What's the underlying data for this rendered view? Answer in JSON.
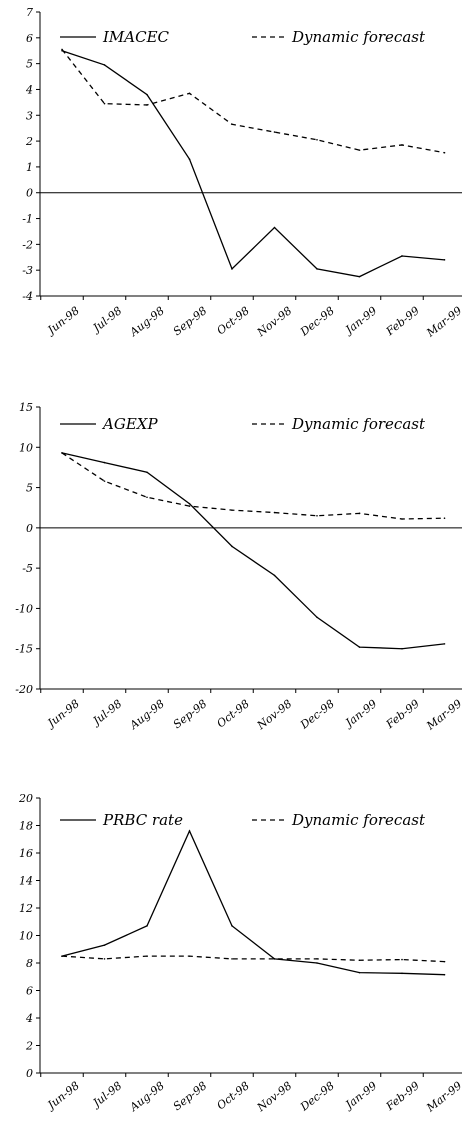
{
  "chart_data": [
    {
      "type": "line",
      "categories": [
        "Jun-98",
        "Jul-98",
        "Aug-98",
        "Sep-98",
        "Oct-98",
        "Nov-98",
        "Dec-98",
        "Jan-99",
        "Feb-99",
        "Mar-99"
      ],
      "ylim": [
        -4,
        7
      ],
      "yticks": [
        7,
        6,
        5,
        4,
        3,
        2,
        1,
        0,
        -1,
        -2,
        -3,
        -4
      ],
      "ytick_labels": [
        "7",
        "6",
        "5",
        "4",
        "3",
        "2",
        "1",
        "0",
        "-1",
        "-2",
        "-3",
        "-4"
      ],
      "legend_position": "top",
      "zero_line": true,
      "series": [
        {
          "name": "IMACEC",
          "style": "solid",
          "values": [
            5.5,
            4.95,
            3.8,
            1.3,
            -2.95,
            -1.35,
            -2.95,
            -3.25,
            -2.45,
            -2.6
          ]
        },
        {
          "name": "Dynamic forecast",
          "style": "dashed",
          "values": [
            5.55,
            3.45,
            3.4,
            3.85,
            2.65,
            2.35,
            2.05,
            1.65,
            1.85,
            1.55
          ]
        }
      ]
    },
    {
      "type": "line",
      "categories": [
        "Jun-98",
        "Jul-98",
        "Aug-98",
        "Sep-98",
        "Oct-98",
        "Nov-98",
        "Dec-98",
        "Jan-99",
        "Feb-99",
        "Mar-99"
      ],
      "ylim": [
        -20,
        15
      ],
      "yticks": [
        15,
        10,
        5,
        0,
        -5,
        -10,
        -15,
        -20
      ],
      "ytick_labels": [
        "15",
        "10",
        "5",
        "0",
        "-5",
        "-10",
        "-15",
        "-20"
      ],
      "legend_position": "top",
      "zero_line": true,
      "series": [
        {
          "name": "AGEXP",
          "style": "solid",
          "values": [
            9.3,
            8.1,
            6.9,
            3.0,
            -2.3,
            -5.9,
            -11.1,
            -14.8,
            -15.0,
            -14.4
          ]
        },
        {
          "name": "Dynamic forecast",
          "style": "dashed",
          "values": [
            9.3,
            5.8,
            3.8,
            2.7,
            2.2,
            1.9,
            1.5,
            1.8,
            1.1,
            1.2
          ]
        }
      ]
    },
    {
      "type": "line",
      "categories": [
        "Jun-98",
        "Jul-98",
        "Aug-98",
        "Sep-98",
        "Oct-98",
        "Nov-98",
        "Dec-98",
        "Jan-99",
        "Feb-99",
        "Mar-99"
      ],
      "ylim": [
        0,
        20
      ],
      "yticks": [
        20,
        18,
        16,
        14,
        12,
        10,
        8,
        6,
        4,
        2,
        0
      ],
      "ytick_labels": [
        "20",
        "18",
        "16",
        "14",
        "12",
        "10",
        "8",
        "6",
        "4",
        "2",
        "0"
      ],
      "legend_position": "top",
      "zero_line": false,
      "series": [
        {
          "name": "PRBC rate",
          "style": "solid",
          "values": [
            8.5,
            9.3,
            10.7,
            17.6,
            10.7,
            8.3,
            8.0,
            7.3,
            7.25,
            7.15
          ]
        },
        {
          "name": "Dynamic forecast",
          "style": "dashed",
          "values": [
            8.5,
            8.3,
            8.5,
            8.5,
            8.3,
            8.3,
            8.3,
            8.2,
            8.25,
            8.1
          ]
        }
      ]
    }
  ]
}
